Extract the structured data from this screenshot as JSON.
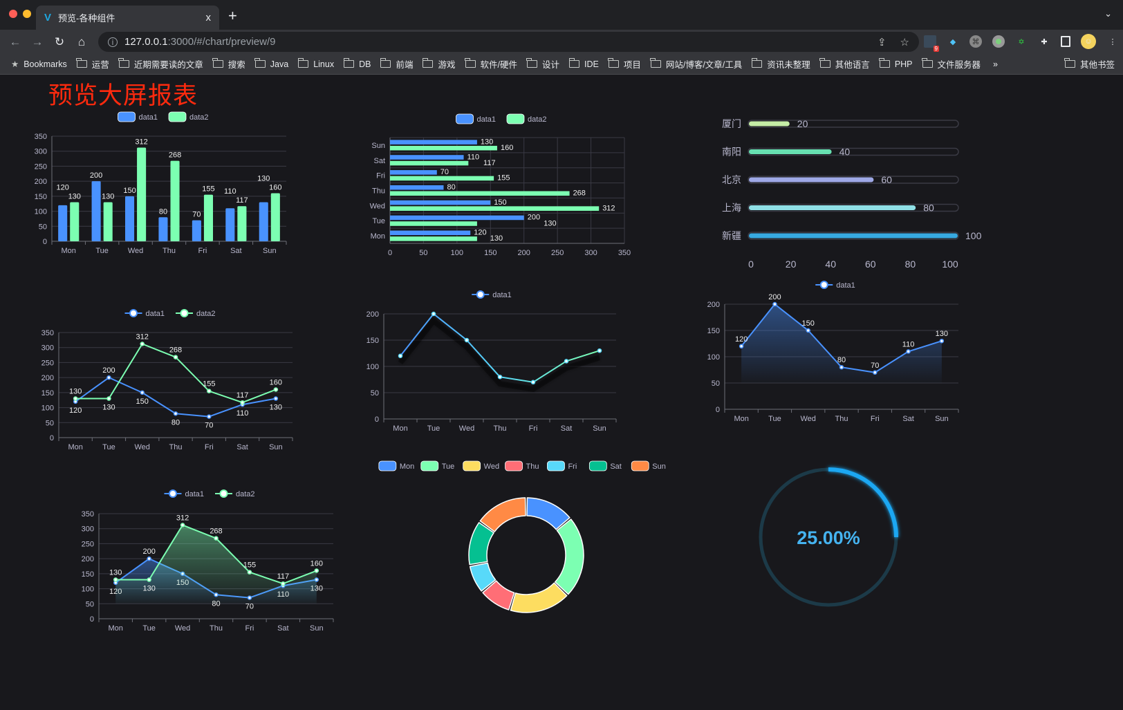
{
  "browser": {
    "tab_title": "预览-各种组件",
    "tab_close": "x",
    "new_tab": "+",
    "url_host": "127.0.0.1",
    "url_rest": ":3000/#/chart/preview/9",
    "extension_badge": "9",
    "bookmarks_label": "Bookmarks",
    "bookmarks": [
      "运营",
      "近期需要读的文章",
      "搜索",
      "Java",
      "Linux",
      "DB",
      "前端",
      "游戏",
      "软件/硬件",
      "设计",
      "IDE",
      "项目",
      "网站/博客/文章/工具",
      "资讯未整理",
      "其他语言",
      "PHP",
      "文件服务器"
    ],
    "overflow": "»",
    "other_bookmarks": "其他书签"
  },
  "page": {
    "title": "预览大屏报表",
    "title_color": "#fe2a0e"
  },
  "colors": {
    "palette": [
      "#4992ff",
      "#7cffb2",
      "#fddd60",
      "#ff6e76",
      "#58d9f9",
      "#05c091",
      "#ff8a45"
    ],
    "background": "#18181c"
  },
  "chart_data": [
    {
      "type": "bar",
      "orientation": "vertical",
      "categories": [
        "Mon",
        "Tue",
        "Wed",
        "Thu",
        "Fri",
        "Sat",
        "Sun"
      ],
      "series": [
        {
          "name": "data1",
          "values": [
            120,
            200,
            150,
            80,
            70,
            110,
            130
          ]
        },
        {
          "name": "data2",
          "values": [
            130,
            130,
            312,
            268,
            155,
            117,
            160
          ]
        }
      ],
      "ylim": [
        0,
        350
      ],
      "yticks": [
        0,
        50,
        100,
        150,
        200,
        250,
        300,
        350
      ],
      "data_labels": true,
      "grid": true,
      "legend": "top"
    },
    {
      "type": "bar",
      "orientation": "horizontal",
      "categories": [
        "Mon",
        "Tue",
        "Wed",
        "Thu",
        "Fri",
        "Sat",
        "Sun"
      ],
      "series": [
        {
          "name": "data1",
          "values": [
            120,
            200,
            150,
            80,
            70,
            110,
            130
          ]
        },
        {
          "name": "data2",
          "values": [
            130,
            130,
            312,
            268,
            155,
            117,
            160
          ]
        }
      ],
      "xlim": [
        0,
        350
      ],
      "xticks": [
        0,
        50,
        100,
        150,
        200,
        250,
        300,
        350
      ],
      "data_labels": true,
      "grid": true,
      "legend": "top"
    },
    {
      "type": "line",
      "categories": [
        "Mon",
        "Tue",
        "Wed",
        "Thu",
        "Fri",
        "Sat",
        "Sun"
      ],
      "series": [
        {
          "name": "data1",
          "values": [
            120,
            200,
            150,
            80,
            70,
            110,
            130
          ]
        },
        {
          "name": "data2",
          "values": [
            130,
            130,
            312,
            268,
            155,
            117,
            160
          ]
        }
      ],
      "ylim": [
        0,
        350
      ],
      "yticks": [
        0,
        50,
        100,
        150,
        200,
        250,
        300,
        350
      ],
      "data_labels": true,
      "grid": true,
      "legend": "top"
    },
    {
      "type": "line",
      "categories": [
        "Mon",
        "Tue",
        "Wed",
        "Thu",
        "Fri",
        "Sat",
        "Sun"
      ],
      "series": [
        {
          "name": "data1",
          "values": [
            120,
            200,
            150,
            80,
            70,
            110,
            130
          ]
        }
      ],
      "ylim": [
        0,
        200
      ],
      "yticks": [
        0,
        50,
        100,
        150,
        200
      ],
      "data_labels": false,
      "grid": true,
      "legend": "top"
    },
    {
      "type": "bar",
      "orientation": "horizontal",
      "style": "progress",
      "categories": [
        "厦门",
        "南阳",
        "北京",
        "上海",
        "新疆"
      ],
      "values": [
        20,
        40,
        60,
        80,
        100
      ],
      "colors": [
        "#c5eda6",
        "#67e0b1",
        "#9ea8e6",
        "#8fe0e6",
        "#37a9e0"
      ],
      "xlim": [
        0,
        100
      ],
      "xticks": [
        0,
        20,
        40,
        60,
        80,
        100
      ],
      "data_labels": true,
      "grid": false
    },
    {
      "type": "area",
      "categories": [
        "Mon",
        "Tue",
        "Wed",
        "Thu",
        "Fri",
        "Sat",
        "Sun"
      ],
      "series": [
        {
          "name": "data1",
          "values": [
            120,
            200,
            150,
            80,
            70,
            110,
            130
          ]
        }
      ],
      "ylim": [
        0,
        200
      ],
      "yticks": [
        0,
        50,
        100,
        150,
        200
      ],
      "data_labels": true,
      "grid": true,
      "legend": "top"
    },
    {
      "type": "area",
      "categories": [
        "Mon",
        "Tue",
        "Wed",
        "Thu",
        "Fri",
        "Sat",
        "Sun"
      ],
      "series": [
        {
          "name": "data1",
          "values": [
            120,
            200,
            150,
            80,
            70,
            110,
            130
          ]
        },
        {
          "name": "data2",
          "values": [
            130,
            130,
            312,
            268,
            155,
            117,
            160
          ]
        }
      ],
      "ylim": [
        0,
        350
      ],
      "yticks": [
        0,
        50,
        100,
        150,
        200,
        250,
        300,
        350
      ],
      "data_labels": true,
      "grid": true,
      "legend": "top"
    },
    {
      "type": "pie",
      "style": "donut",
      "categories": [
        "Mon",
        "Tue",
        "Wed",
        "Thu",
        "Fri",
        "Sat",
        "Sun"
      ],
      "values": [
        120,
        200,
        150,
        80,
        70,
        110,
        130
      ],
      "legend": "top"
    },
    {
      "type": "gauge",
      "value": 25,
      "max": 100,
      "label": "25.00%",
      "color": "#1aa7f2"
    }
  ]
}
